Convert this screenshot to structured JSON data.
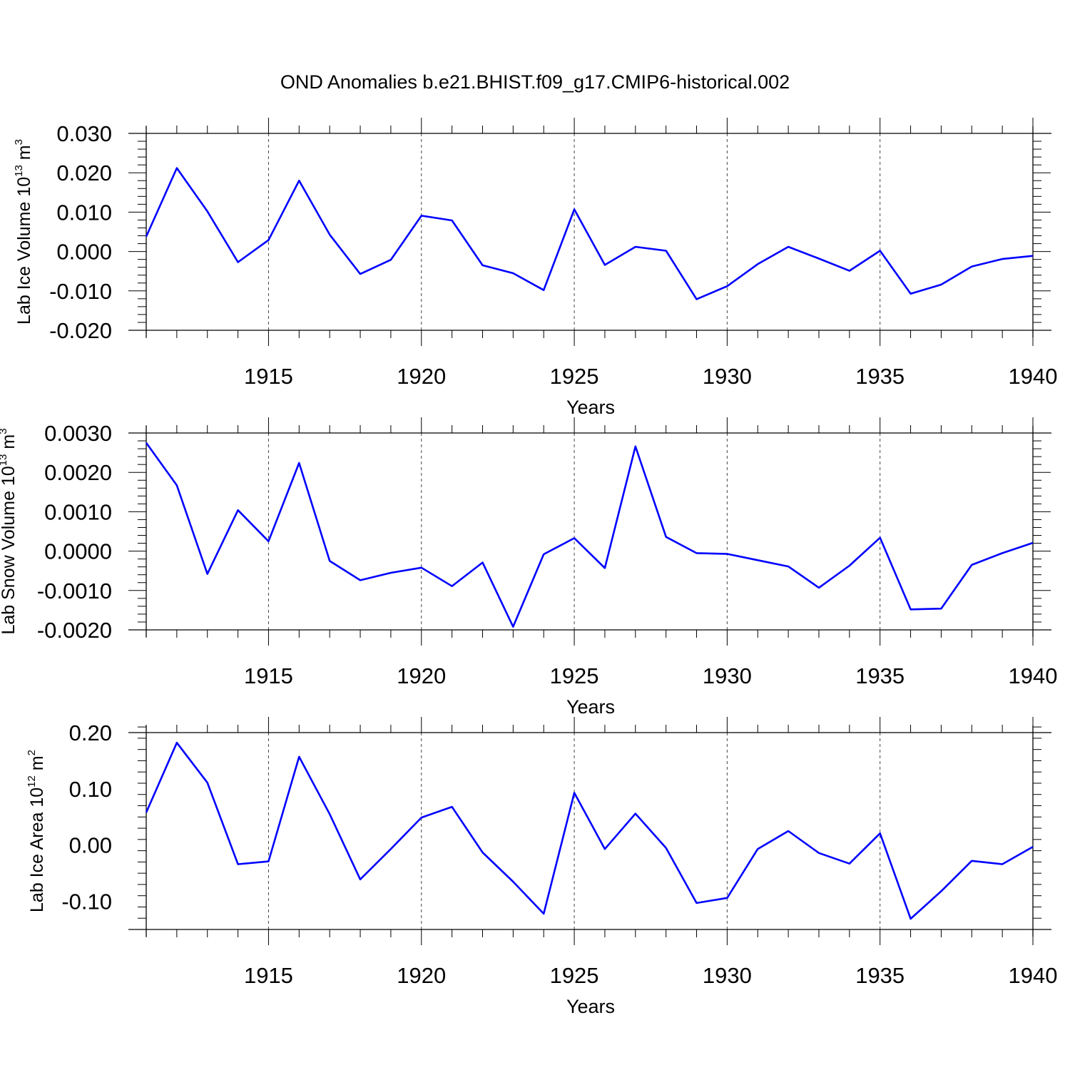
{
  "title": "OND Anomalies b.e21.BHIST.f09_g17.CMIP6-historical.002",
  "line_color": "#0000ff",
  "chart_data": [
    {
      "type": "line",
      "title": "OND Anomalies b.e21.BHIST.f09_g17.CMIP6-historical.002",
      "xlabel": "Years",
      "ylabel": "Lab Ice Volume",
      "ylabel_unit_base": "10",
      "ylabel_unit_exp": "13",
      "ylabel_unit_name": "m",
      "ylabel_unit_power": "3",
      "xlim": [
        1911,
        1940
      ],
      "ylim": [
        -0.02,
        0.03
      ],
      "x_ticks": [
        1915,
        1920,
        1925,
        1930,
        1935,
        1940
      ],
      "x_tick_labels": [
        "1915",
        "1920",
        "1925",
        "1930",
        "1935",
        "1940"
      ],
      "y_ticks": [
        -0.02,
        -0.01,
        0.0,
        0.01,
        0.02,
        0.03
      ],
      "y_tick_labels": [
        "-0.020",
        "-0.010",
        "0.000",
        "0.010",
        "0.020",
        "0.030"
      ],
      "grid": "vertical dashed at labeled years",
      "x": [
        1911,
        1912,
        1913,
        1914,
        1915,
        1916,
        1917,
        1918,
        1919,
        1920,
        1921,
        1922,
        1923,
        1924,
        1925,
        1926,
        1927,
        1928,
        1929,
        1930,
        1931,
        1932,
        1933,
        1934,
        1935,
        1936,
        1937,
        1938,
        1939,
        1940
      ],
      "values": [
        0.0038,
        0.0212,
        0.0102,
        -0.0027,
        0.0029,
        0.018,
        0.0043,
        -0.0057,
        -0.0021,
        0.0091,
        0.0079,
        -0.0035,
        -0.0055,
        -0.0098,
        0.0107,
        -0.0034,
        0.0012,
        0.0002,
        -0.0121,
        -0.0088,
        -0.0032,
        0.0012,
        -0.0018,
        -0.0049,
        0.0002,
        -0.0107,
        -0.0084,
        -0.0038,
        -0.0019,
        -0.0011
      ]
    },
    {
      "type": "line",
      "xlabel": "Years",
      "ylabel": "Lab Snow Volume",
      "ylabel_unit_base": "10",
      "ylabel_unit_exp": "13",
      "ylabel_unit_name": "m",
      "ylabel_unit_power": "3",
      "xlim": [
        1911,
        1940
      ],
      "ylim": [
        -0.002,
        0.003
      ],
      "x_ticks": [
        1915,
        1920,
        1925,
        1930,
        1935,
        1940
      ],
      "x_tick_labels": [
        "1915",
        "1920",
        "1925",
        "1930",
        "1935",
        "1940"
      ],
      "y_ticks": [
        -0.002,
        -0.001,
        0.0,
        0.001,
        0.002,
        0.003
      ],
      "y_tick_labels": [
        "-0.0020",
        "-0.0010",
        "0.0000",
        "0.0010",
        "0.0020",
        "0.0030"
      ],
      "grid": "vertical dashed at labeled years",
      "x": [
        1911,
        1912,
        1913,
        1914,
        1915,
        1916,
        1917,
        1918,
        1919,
        1920,
        1921,
        1922,
        1923,
        1924,
        1925,
        1926,
        1927,
        1928,
        1929,
        1930,
        1931,
        1932,
        1933,
        1934,
        1935,
        1936,
        1937,
        1938,
        1939,
        1940
      ],
      "values": [
        0.00275,
        0.00167,
        -0.00058,
        0.00104,
        0.00025,
        0.00224,
        -0.00025,
        -0.00074,
        -0.00055,
        -0.00042,
        -0.00089,
        -0.00029,
        -0.00192,
        -8e-05,
        0.00033,
        -0.00043,
        0.00266,
        0.00036,
        -5e-05,
        -7e-05,
        -0.00023,
        -0.00039,
        -0.00093,
        -0.00037,
        0.00034,
        -0.00148,
        -0.00146,
        -0.00035,
        -5e-05,
        0.00021
      ]
    },
    {
      "type": "line",
      "xlabel": "Years",
      "ylabel": "Lab Ice Area",
      "ylabel_unit_base": "10",
      "ylabel_unit_exp": "12",
      "ylabel_unit_name": "m",
      "ylabel_unit_power": "2",
      "xlim": [
        1911,
        1940
      ],
      "ylim": [
        -0.15,
        0.2
      ],
      "x_ticks": [
        1915,
        1920,
        1925,
        1930,
        1935,
        1940
      ],
      "x_tick_labels": [
        "1915",
        "1920",
        "1925",
        "1930",
        "1935",
        "1940"
      ],
      "y_ticks": [
        -0.1,
        0.0,
        0.1,
        0.2
      ],
      "y_tick_labels": [
        "-0.10",
        "0.00",
        "0.10",
        "0.20"
      ],
      "grid": "vertical dashed at labeled years",
      "x": [
        1911,
        1912,
        1913,
        1914,
        1915,
        1916,
        1917,
        1918,
        1919,
        1920,
        1921,
        1922,
        1923,
        1924,
        1925,
        1926,
        1927,
        1928,
        1929,
        1930,
        1931,
        1932,
        1933,
        1934,
        1935,
        1936,
        1937,
        1938,
        1939,
        1940
      ],
      "values": [
        0.058,
        0.182,
        0.111,
        -0.034,
        -0.029,
        0.157,
        0.055,
        -0.061,
        -0.007,
        0.049,
        0.068,
        -0.013,
        -0.065,
        -0.122,
        0.093,
        -0.007,
        0.056,
        -0.005,
        -0.103,
        -0.094,
        -0.007,
        0.025,
        -0.014,
        -0.033,
        0.021,
        -0.131,
        -0.082,
        -0.028,
        -0.034,
        -0.003
      ]
    }
  ]
}
